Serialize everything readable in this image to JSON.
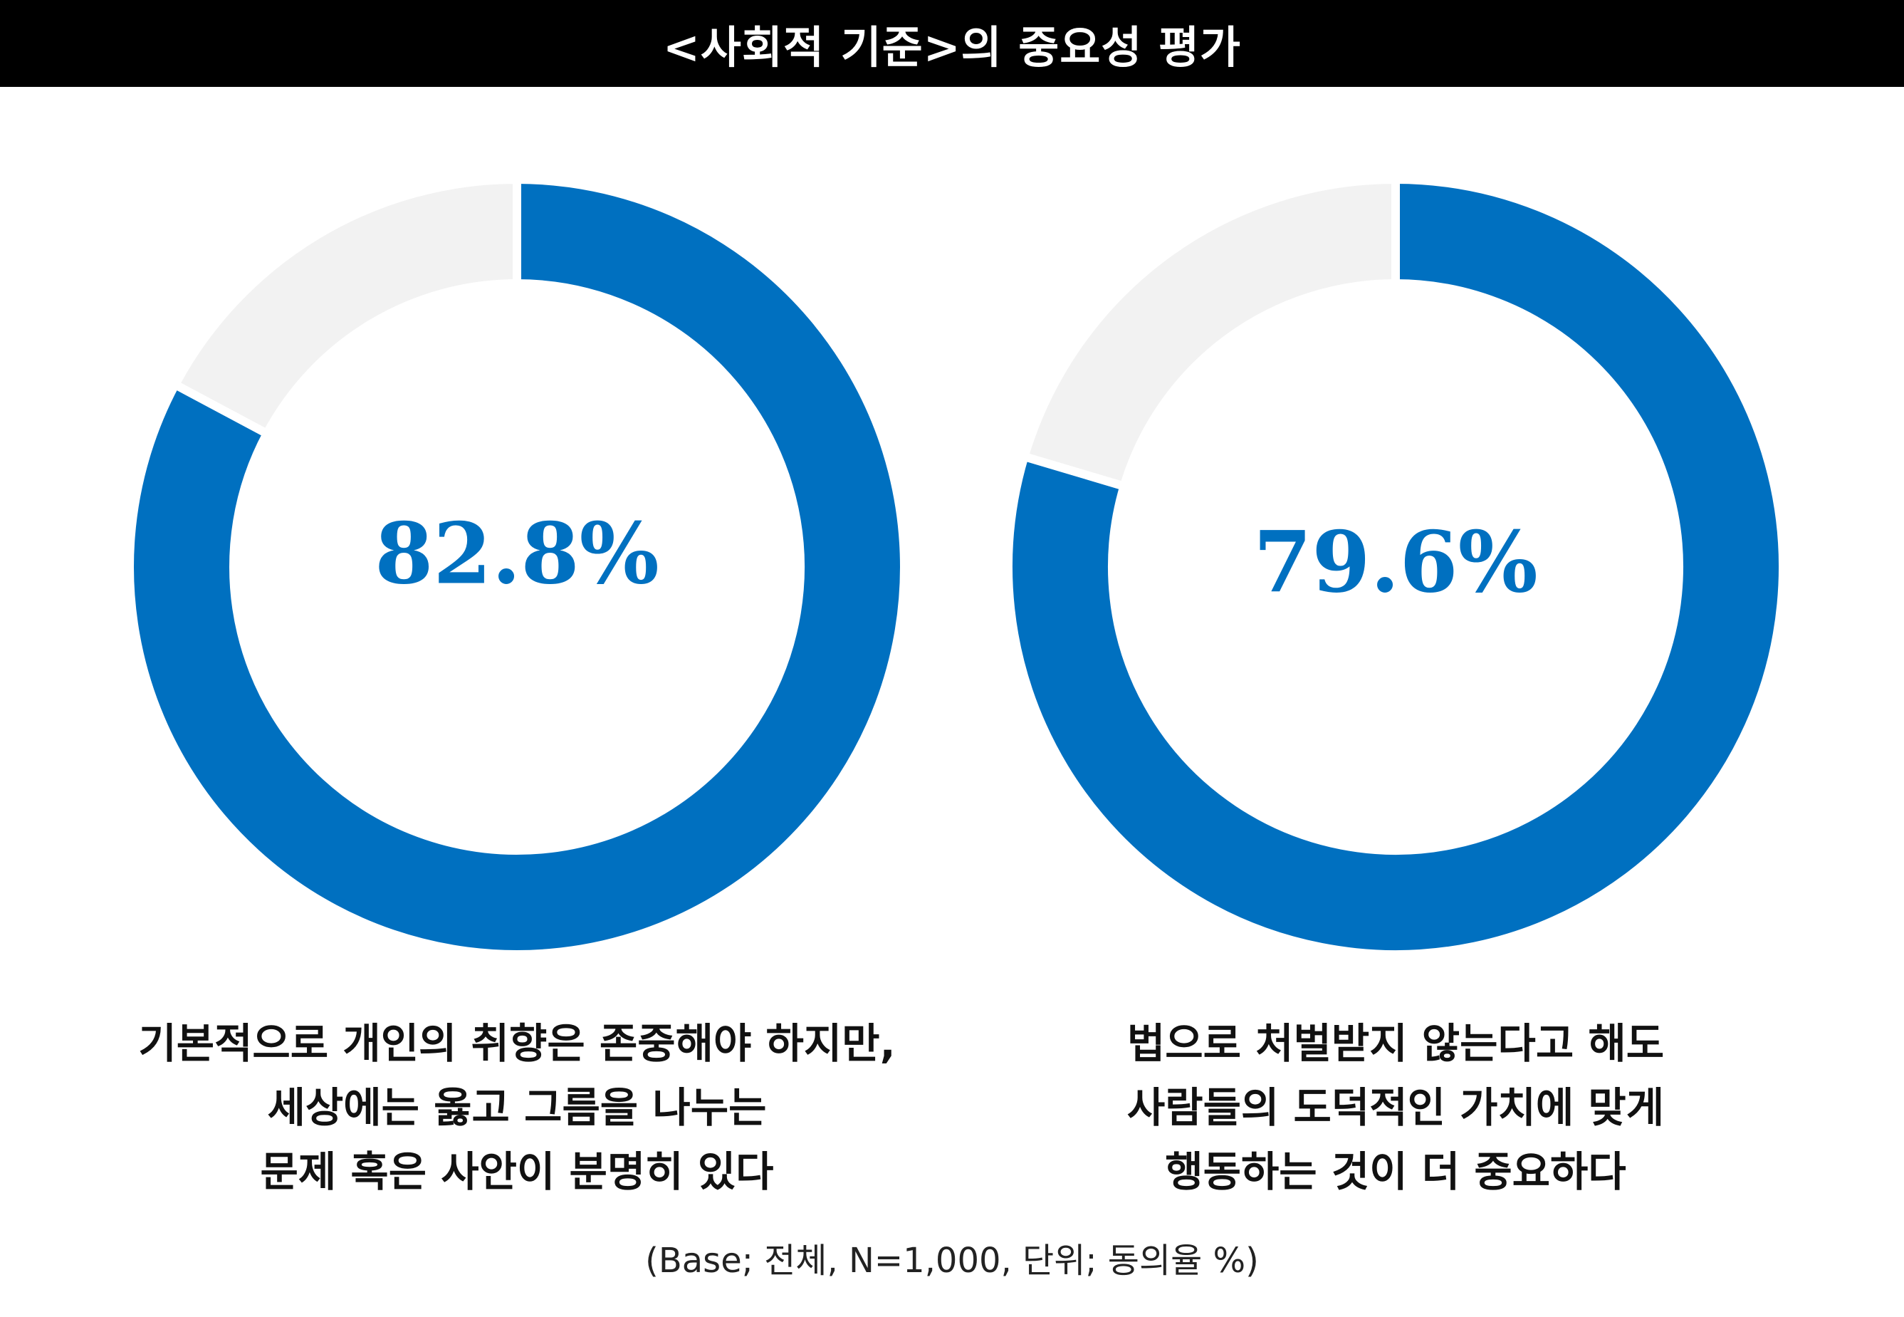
{
  "title": "<사회적 기준>의 중요성 평가",
  "footnote": "(Base; 전체, N=1,000, 단위; 동의율 %)",
  "colors": {
    "agree": "#0070C0",
    "rest": "#F2F2F2",
    "label": "#0070C0"
  },
  "chart_data": [
    {
      "type": "pie",
      "center_label": "82.8%",
      "values": [
        82.8,
        17.2
      ],
      "caption_lines": [
        "기본적으로 개인의 취향은 존중해야 하지만,",
        "세상에는 옳고 그름을 나누는",
        "문제 혹은 사안이 분명히 있다"
      ]
    },
    {
      "type": "pie",
      "center_label": "79.6%",
      "values": [
        79.6,
        20.4
      ],
      "caption_lines": [
        "법으로 처벌받지 않는다고 해도",
        "사람들의 도덕적인 가치에 맞게",
        "행동하는 것이 더 중요하다"
      ]
    }
  ]
}
